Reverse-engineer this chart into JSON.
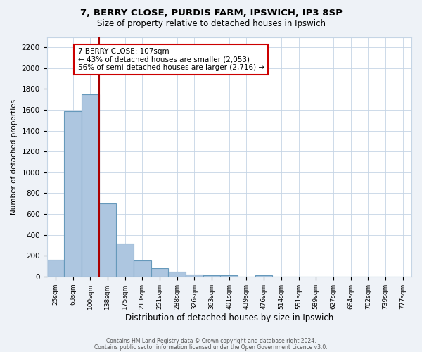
{
  "title": "7, BERRY CLOSE, PURDIS FARM, IPSWICH, IP3 8SP",
  "subtitle": "Size of property relative to detached houses in Ipswich",
  "xlabel": "Distribution of detached houses by size in Ipswich",
  "ylabel": "Number of detached properties",
  "bar_labels": [
    "25sqm",
    "63sqm",
    "100sqm",
    "138sqm",
    "175sqm",
    "213sqm",
    "251sqm",
    "288sqm",
    "326sqm",
    "363sqm",
    "401sqm",
    "439sqm",
    "476sqm",
    "514sqm",
    "551sqm",
    "589sqm",
    "627sqm",
    "664sqm",
    "702sqm",
    "739sqm",
    "777sqm"
  ],
  "bar_values": [
    160,
    1590,
    1750,
    700,
    315,
    155,
    80,
    45,
    20,
    10,
    10,
    0,
    10,
    0,
    0,
    0,
    0,
    0,
    0,
    0,
    0
  ],
  "bar_color": "#adc6e0",
  "bar_edge_color": "#6699bb",
  "ylim": [
    0,
    2300
  ],
  "yticks": [
    0,
    200,
    400,
    600,
    800,
    1000,
    1200,
    1400,
    1600,
    1800,
    2000,
    2200
  ],
  "vline_x": 2.5,
  "vline_color": "#aa0000",
  "annotation_text": "7 BERRY CLOSE: 107sqm\n← 43% of detached houses are smaller (2,053)\n56% of semi-detached houses are larger (2,716) →",
  "footer_line1": "Contains HM Land Registry data © Crown copyright and database right 2024.",
  "footer_line2": "Contains public sector information licensed under the Open Government Licence v3.0.",
  "bg_color": "#eef2f7",
  "plot_bg_color": "#ffffff",
  "grid_color": "#c5d5e5"
}
